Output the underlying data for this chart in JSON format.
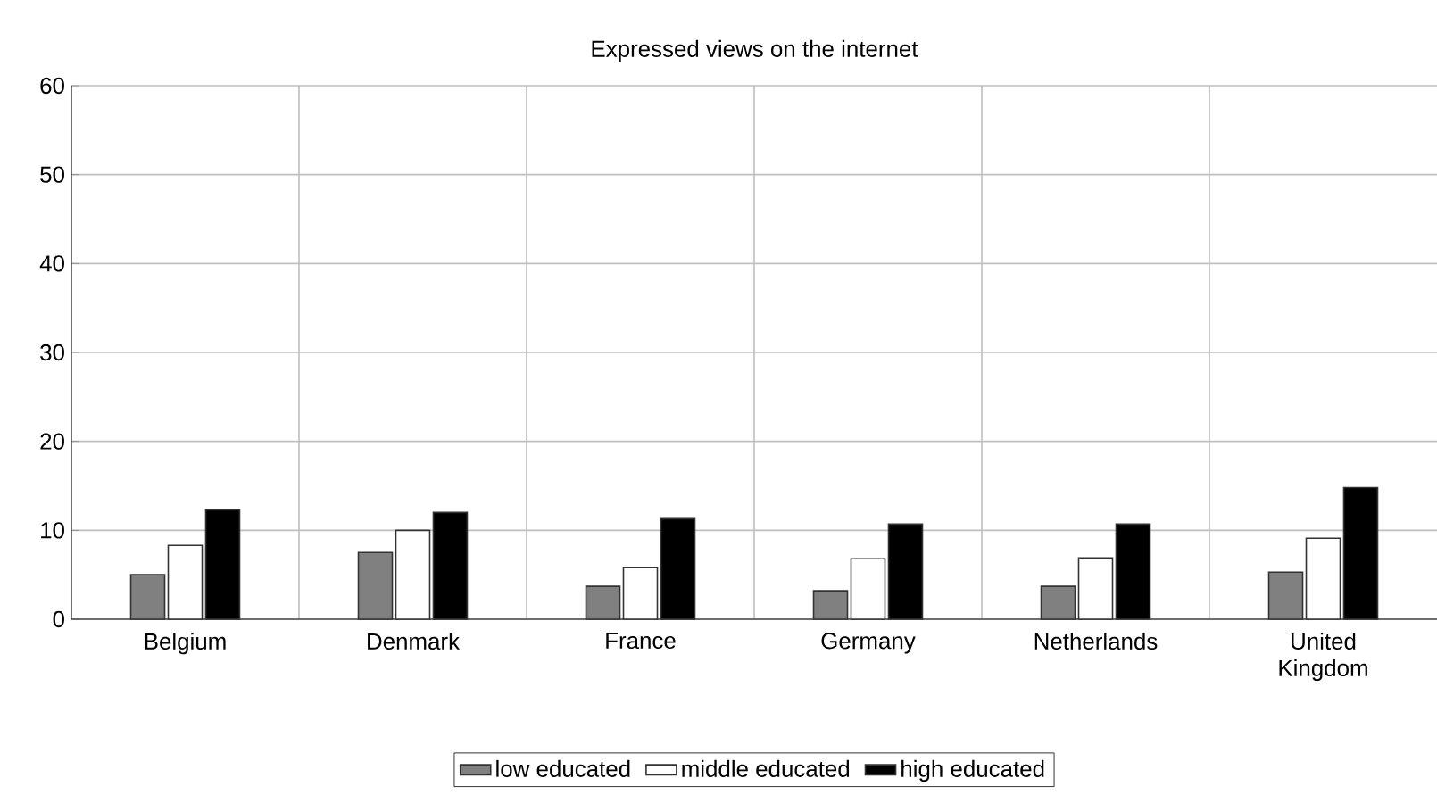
{
  "chart_data": {
    "type": "bar",
    "title": "Expressed views on the internet",
    "categories": [
      "Belgium",
      "Denmark",
      "France",
      "Germany",
      "Netherlands",
      "United Kingdom"
    ],
    "series": [
      {
        "name": "low educated",
        "color": "#808080",
        "values": [
          5.0,
          7.5,
          3.7,
          3.2,
          3.7,
          5.3
        ]
      },
      {
        "name": "middle educated",
        "color": "#ffffff",
        "values": [
          8.3,
          10.0,
          5.8,
          6.8,
          6.9,
          9.1
        ]
      },
      {
        "name": "high educated",
        "color": "#000000",
        "values": [
          12.3,
          12.0,
          11.3,
          10.7,
          10.7,
          14.8
        ]
      }
    ],
    "ylim": [
      0,
      60
    ],
    "yticks": [
      0,
      10,
      20,
      30,
      40,
      50,
      60
    ],
    "grid": true,
    "legend": "bottom"
  }
}
